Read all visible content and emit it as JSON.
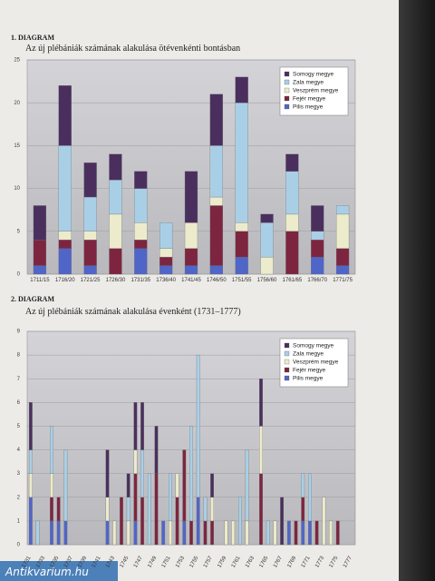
{
  "watermark": "Antikvarium.hu",
  "chart_data": [
    {
      "type": "bar",
      "stacked": true,
      "label": "1. DIAGRAM",
      "title": "Az új plébániák számának alakulása ötévenkénti bontásban",
      "categories": [
        "1711/15",
        "1716/20",
        "1721/25",
        "1726/30",
        "1731/35",
        "1736/40",
        "1741/45",
        "1746/50",
        "1751/55",
        "1756/60",
        "1761/65",
        "1766/70",
        "1771/75"
      ],
      "series": [
        {
          "name": "Somogy megye",
          "color": "#4a2f5e",
          "values": [
            4,
            7,
            4,
            3,
            2,
            0,
            6,
            6,
            3,
            1,
            2,
            3,
            0
          ]
        },
        {
          "name": "Zala megye",
          "color": "#a9cfe6",
          "values": [
            0,
            10,
            4,
            4,
            4,
            3,
            0,
            6,
            14,
            4,
            5,
            1,
            1
          ]
        },
        {
          "name": "Veszprém megye",
          "color": "#ecebcb",
          "values": [
            0,
            1,
            1,
            4,
            2,
            1,
            3,
            1,
            1,
            2,
            2,
            0,
            4
          ]
        },
        {
          "name": "Fejér megye",
          "color": "#7d2540",
          "values": [
            3,
            1,
            3,
            3,
            1,
            1,
            2,
            7,
            3,
            0,
            5,
            2,
            2
          ]
        },
        {
          "name": "Pilis megye",
          "color": "#5065c8",
          "values": [
            1,
            3,
            1,
            0,
            3,
            1,
            1,
            1,
            2,
            0,
            0,
            2,
            1
          ]
        }
      ],
      "ylim": [
        0,
        25
      ],
      "yticks": [
        0,
        5,
        10,
        15,
        20,
        25
      ],
      "grid": true,
      "legend": "top-right"
    },
    {
      "type": "bar",
      "stacked": true,
      "label": "2. DIAGRAM",
      "title": "Az új plébániák számának alakulása évenként (1731–1777)",
      "categories": [
        "1731",
        null,
        "1733",
        null,
        "1735",
        null,
        "1737",
        null,
        "1739",
        null,
        "1741",
        null,
        "1743",
        null,
        "1745",
        null,
        "1747",
        null,
        "1749",
        null,
        "1751",
        null,
        "1753",
        null,
        "1755",
        null,
        "1757",
        null,
        "1759",
        null,
        "1761",
        null,
        "1763",
        null,
        "1765",
        null,
        "1767",
        null,
        "1769",
        null,
        "1771",
        null,
        "1773",
        null,
        "1775",
        null,
        "1777"
      ],
      "series": [
        {
          "name": "Somogy megye",
          "color": "#4a2f5e",
          "values": [
            2,
            0,
            0,
            0,
            0,
            0,
            0,
            0,
            0,
            0,
            0,
            2,
            0,
            0,
            1,
            2,
            2,
            0,
            2,
            0,
            0,
            0,
            0,
            0,
            0,
            0,
            1,
            0,
            0,
            0,
            0,
            0,
            0,
            2,
            0,
            0,
            2,
            0,
            0,
            0,
            0,
            0,
            0,
            0,
            0,
            0,
            0
          ]
        },
        {
          "name": "Zala megye",
          "color": "#a9cfe6",
          "values": [
            1,
            1,
            0,
            2,
            0,
            3,
            0,
            0,
            0,
            0,
            0,
            0,
            0,
            0,
            1,
            0,
            2,
            3,
            0,
            0,
            2,
            0,
            0,
            4,
            6,
            1,
            0,
            0,
            0,
            0,
            2,
            3,
            0,
            0,
            1,
            0,
            0,
            0,
            0,
            1,
            2,
            0,
            0,
            0,
            0,
            0,
            0
          ]
        },
        {
          "name": "Veszprém megye",
          "color": "#ecebcb",
          "values": [
            1,
            0,
            0,
            1,
            0,
            0,
            0,
            0,
            0,
            0,
            0,
            1,
            1,
            0,
            1,
            1,
            0,
            0,
            0,
            0,
            1,
            1,
            0,
            0,
            0,
            0,
            1,
            0,
            1,
            1,
            0,
            1,
            0,
            2,
            0,
            1,
            0,
            0,
            0,
            0,
            0,
            0,
            2,
            1,
            0,
            0,
            0
          ]
        },
        {
          "name": "Fejér megye",
          "color": "#7d2540",
          "values": [
            0,
            0,
            0,
            1,
            1,
            0,
            0,
            0,
            0,
            0,
            0,
            0,
            0,
            2,
            0,
            2,
            2,
            0,
            3,
            0,
            0,
            2,
            3,
            1,
            0,
            1,
            1,
            0,
            0,
            0,
            0,
            0,
            0,
            3,
            0,
            0,
            0,
            0,
            1,
            1,
            0,
            1,
            0,
            0,
            1,
            0,
            0
          ]
        },
        {
          "name": "Pilis megye",
          "color": "#5065c8",
          "values": [
            2,
            0,
            0,
            1,
            1,
            1,
            0,
            0,
            0,
            0,
            0,
            1,
            0,
            0,
            0,
            1,
            0,
            0,
            0,
            1,
            0,
            0,
            1,
            0,
            2,
            0,
            0,
            0,
            0,
            0,
            0,
            0,
            0,
            0,
            0,
            0,
            0,
            1,
            0,
            1,
            1,
            0,
            0,
            0,
            0,
            0,
            0
          ]
        }
      ],
      "ylim": [
        0,
        9
      ],
      "yticks": [
        0,
        1,
        2,
        3,
        4,
        5,
        6,
        7,
        8,
        9
      ],
      "grid": true,
      "legend": "top-right"
    }
  ]
}
